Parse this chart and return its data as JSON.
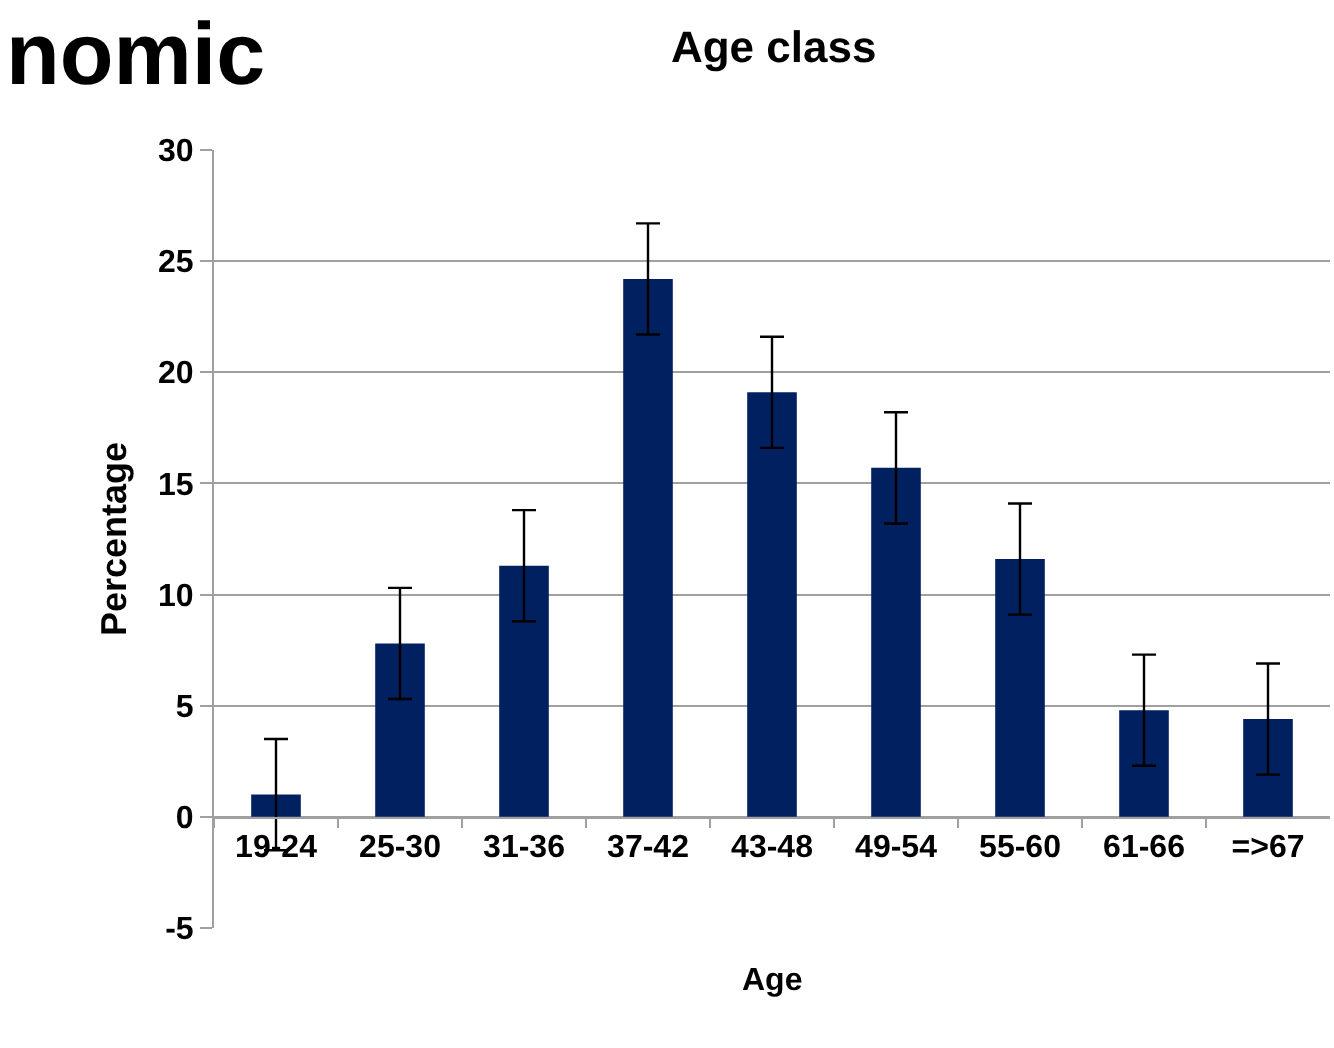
{
  "chart_data": {
    "type": "bar",
    "title": "Age class",
    "xlabel": "Age",
    "ylabel": "Percentage",
    "categories": [
      "19-24",
      "25-30",
      "31-36",
      "37-42",
      "43-48",
      "49-54",
      "55-60",
      "61-66",
      "=>67"
    ],
    "values": [
      1.0,
      7.8,
      11.3,
      24.2,
      19.1,
      15.7,
      11.6,
      4.8,
      4.4
    ],
    "errors": [
      2.5,
      2.5,
      2.5,
      2.5,
      2.5,
      2.5,
      2.5,
      2.5,
      2.5
    ],
    "color": "#002060",
    "ylim": [
      -5,
      30
    ],
    "yticks": [
      -5,
      0,
      5,
      10,
      15,
      20,
      25,
      30
    ],
    "grid": "y",
    "annotations": [
      "nomic"
    ]
  }
}
